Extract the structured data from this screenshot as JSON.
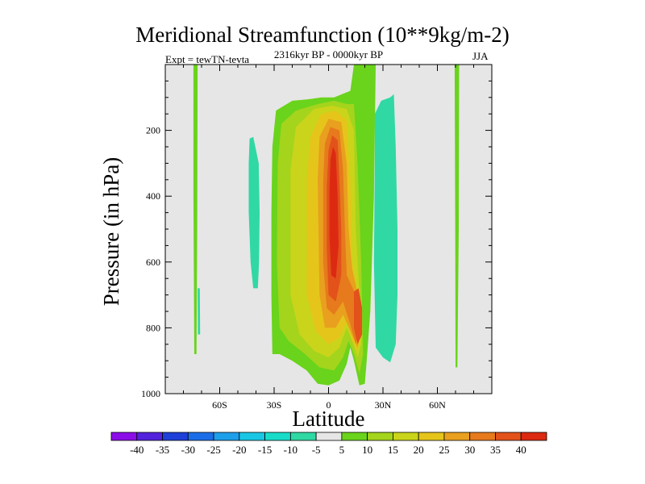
{
  "chart_data": {
    "type": "contour",
    "title": "Meridional Streamfunction (10**9kg/m-2)",
    "subtitle": "2316kyr BP - 0000kyr BP",
    "experiment": "Expt = tewTN-tevta",
    "season": "JJA",
    "xlabel": "Latitude",
    "ylabel": "Pressure (in hPa)",
    "xlim": [
      -90,
      90
    ],
    "ylim": [
      1000,
      0
    ],
    "x_ticks": [
      {
        "value": -60,
        "label": "60S"
      },
      {
        "value": -30,
        "label": "30S"
      },
      {
        "value": 0,
        "label": "0"
      },
      {
        "value": 30,
        "label": "30N"
      },
      {
        "value": 60,
        "label": "60N"
      }
    ],
    "y_ticks": [
      {
        "value": 200,
        "label": "200"
      },
      {
        "value": 400,
        "label": "400"
      },
      {
        "value": 600,
        "label": "600"
      },
      {
        "value": 800,
        "label": "800"
      },
      {
        "value": 1000,
        "label": "1000"
      }
    ],
    "contour_levels": [
      -40,
      -35,
      -30,
      -25,
      -20,
      -15,
      -10,
      -5,
      5,
      10,
      15,
      20,
      25,
      30,
      35,
      40
    ],
    "level_labels": [
      "-40",
      "-35",
      "-30",
      "-25",
      "-20",
      "-15",
      "-10",
      "-5",
      "5",
      "10",
      "15",
      "20",
      "25",
      "30",
      "35",
      "40"
    ],
    "colors": [
      "#8b0ee8",
      "#5322dc",
      "#1e40d8",
      "#1c6ee8",
      "#1e9fea",
      "#19c7e4",
      "#19dcc8",
      "#30d8a4",
      "#e6e6e6",
      "#6ad31c",
      "#a4d41c",
      "#c9d41a",
      "#e6c51a",
      "#e8a01e",
      "#e67a1c",
      "#e2521a",
      "#dc2a12"
    ],
    "background": "#e6e6e6",
    "features": [
      {
        "name": "Southern polar narrow positive strip",
        "level_interval": [
          5,
          10
        ],
        "lat": [
          -74,
          -72
        ],
        "p": [
          0,
          880
        ]
      },
      {
        "name": "Southern narrow negative patch",
        "level_interval": [
          -10,
          -5
        ],
        "lat": [
          -72,
          -71
        ],
        "p": [
          680,
          820
        ]
      },
      {
        "name": "Southern subtropical negative cell",
        "level_interval": [
          -10,
          -5
        ],
        "lat": [
          -44,
          -38
        ],
        "p": [
          220,
          680
        ]
      },
      {
        "name": "Central positive cell",
        "level_interval": [
          5,
          10
        ],
        "lat": [
          -31,
          17
        ],
        "p": [
          80,
          970
        ],
        "max_value": 40,
        "max_at": {
          "lat": 5,
          "p": 400
        }
      },
      {
        "name": "Central cell secondary maximum",
        "level_interval": [
          30,
          35
        ],
        "lat": [
          16,
          20
        ],
        "p": [
          650,
          860
        ]
      },
      {
        "name": "Northern tropical positive strip",
        "level_interval": [
          5,
          10
        ],
        "lat": [
          15,
          25
        ],
        "p": [
          0,
          970
        ]
      },
      {
        "name": "Northern negative cell",
        "level_interval": [
          -10,
          -5
        ],
        "lat": [
          25,
          38
        ],
        "p": [
          80,
          900
        ]
      },
      {
        "name": "Northern polar narrow positive strip",
        "level_interval": [
          5,
          10
        ],
        "lat": [
          70,
          72
        ],
        "p": [
          0,
          920
        ]
      }
    ]
  }
}
